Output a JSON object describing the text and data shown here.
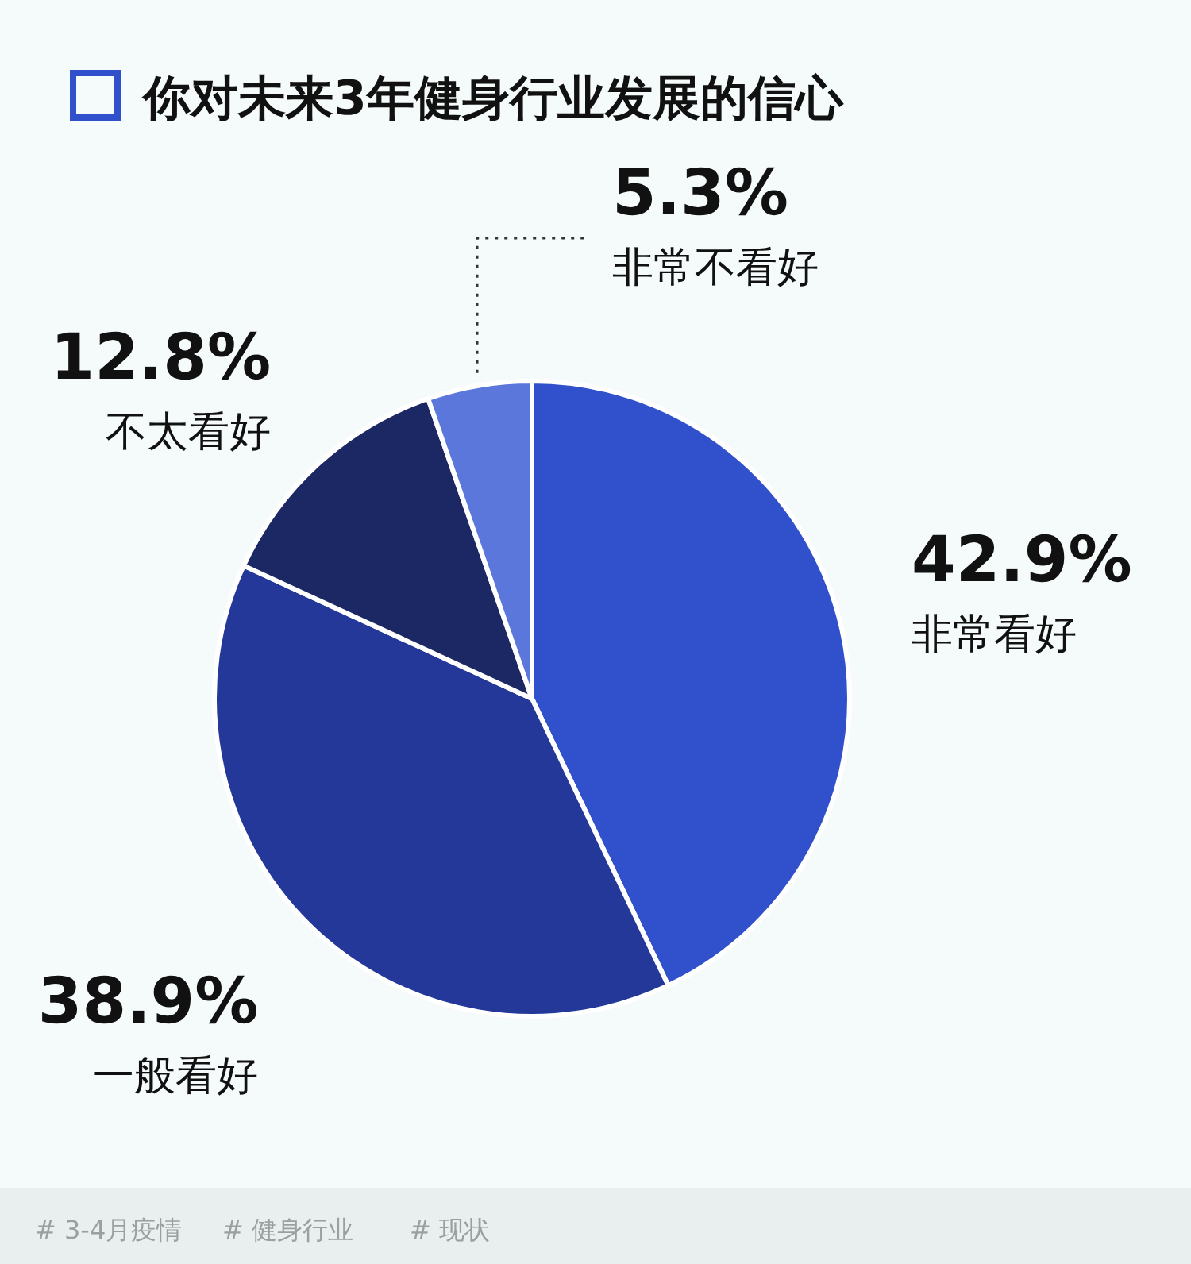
{
  "chart_data": {
    "type": "pie",
    "title": "你对未来3年健身行业发展的信心",
    "categories": [
      "非常看好",
      "一般看好",
      "不太看好",
      "非常不看好"
    ],
    "values": [
      42.9,
      38.9,
      12.8,
      5.3
    ],
    "value_labels": [
      "42.9%",
      "38.9%",
      "12.8%",
      "5.3%"
    ],
    "colors": [
      "#3050cc",
      "#24389a",
      "#1b2864",
      "#5b77db"
    ],
    "annotations": [
      "# 3-4月疫情",
      "# 健身行业",
      "# 现状"
    ]
  }
}
